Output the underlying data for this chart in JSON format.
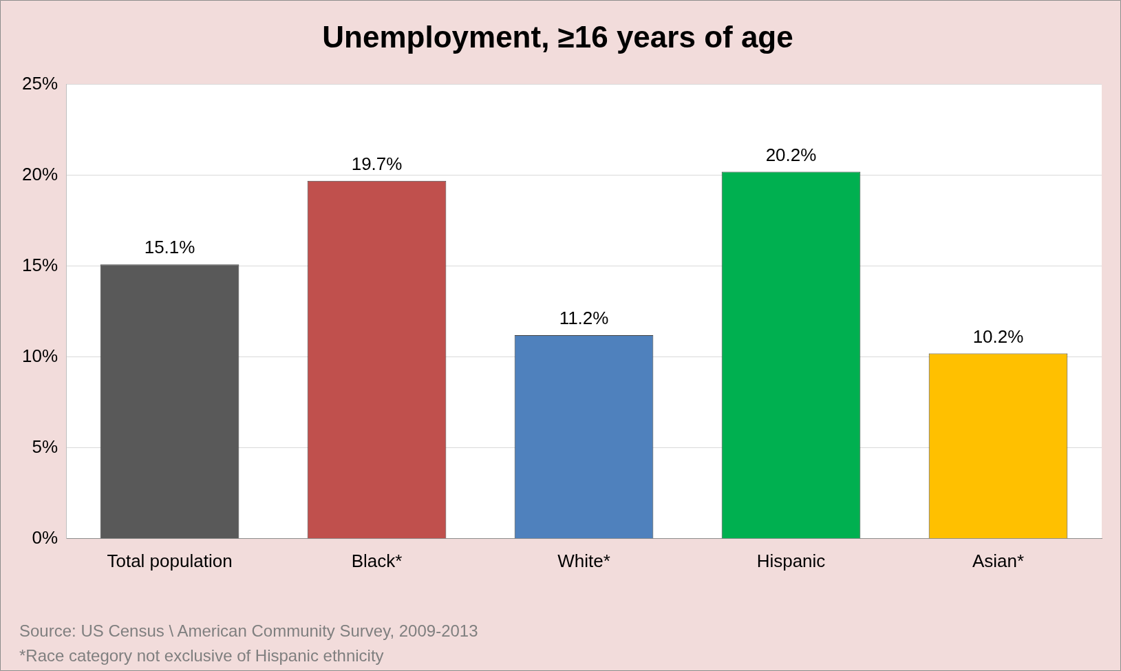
{
  "chart_data": {
    "type": "bar",
    "title": "Unemployment, ≥16 years of age",
    "categories": [
      "Total population",
      "Black*",
      "White*",
      "Hispanic",
      "Asian*"
    ],
    "values": [
      15.1,
      19.7,
      11.2,
      20.2,
      10.2
    ],
    "colors": [
      "#595959",
      "#c0504d",
      "#4f81bd",
      "#00b050",
      "#ffc000"
    ],
    "value_labels": [
      "15.1%",
      "19.7%",
      "11.2%",
      "20.2%",
      "10.2%"
    ],
    "ylim": [
      0,
      25
    ],
    "yticks": [
      {
        "value": 0,
        "label": "0%"
      },
      {
        "value": 5,
        "label": "5%"
      },
      {
        "value": 10,
        "label": "10%"
      },
      {
        "value": 15,
        "label": "15%"
      },
      {
        "value": 20,
        "label": "20%"
      },
      {
        "value": 25,
        "label": "25%"
      }
    ],
    "grid": "y",
    "legend": false,
    "annotations": [
      "Source: US Census \\ American Community Survey, 2009-2013",
      "*Race category not exclusive of Hispanic ethnicity"
    ]
  }
}
